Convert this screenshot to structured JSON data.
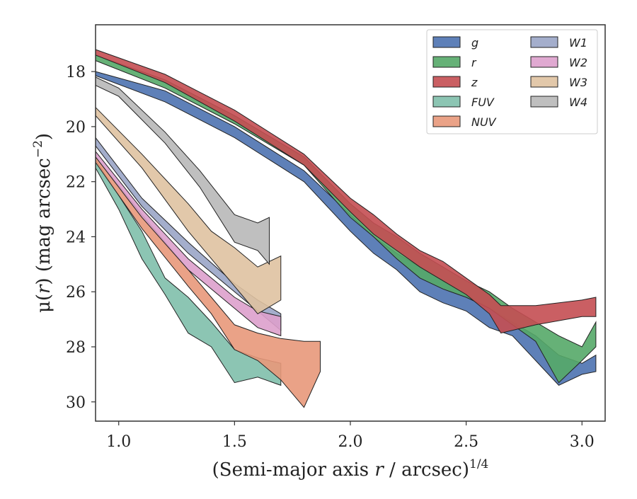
{
  "chart_data": {
    "type": "area",
    "xlabel_prefix": "(Semi-major axis ",
    "xlabel_var": "r",
    "xlabel_suffix": " / arcsec)",
    "xlabel_exp": "1/4",
    "ylabel_prefix": "μ(",
    "ylabel_var": "r",
    "ylabel_suffix": ") (mag arcsec",
    "ylabel_exp": "−2",
    "ylabel_close": ")",
    "xlim": [
      0.9,
      3.1
    ],
    "ylim": [
      30.7,
      16.3
    ],
    "y_inverted": true,
    "xticks": [
      1.0,
      1.5,
      2.0,
      2.5,
      3.0
    ],
    "xtick_labels": [
      "1.0",
      "1.5",
      "2.0",
      "2.5",
      "3.0"
    ],
    "yticks": [
      18,
      20,
      22,
      24,
      26,
      28,
      30
    ],
    "ytick_labels": [
      "18",
      "20",
      "22",
      "24",
      "26",
      "28",
      "30"
    ],
    "grid": false,
    "legend_position": "top-right",
    "legend_columns": 2,
    "series": [
      {
        "name": "g",
        "color": "#4c72b0",
        "x": [
          0.9,
          1.2,
          1.5,
          1.8,
          2.0,
          2.1,
          2.2,
          2.3,
          2.4,
          2.5,
          2.6,
          2.7,
          2.8,
          2.9,
          3.0,
          3.06
        ],
        "lower": [
          18.0,
          18.7,
          20.0,
          21.6,
          23.2,
          24.0,
          24.6,
          25.1,
          25.6,
          26.1,
          26.6,
          27.1,
          27.6,
          28.3,
          28.6,
          28.3
        ],
        "upper": [
          18.15,
          19.1,
          20.4,
          22.0,
          23.8,
          24.6,
          25.2,
          26.0,
          26.4,
          26.7,
          27.3,
          27.6,
          28.5,
          29.4,
          29.0,
          28.9
        ]
      },
      {
        "name": "r",
        "color": "#55a868",
        "x": [
          0.9,
          1.2,
          1.5,
          1.8,
          2.0,
          2.1,
          2.2,
          2.3,
          2.4,
          2.5,
          2.6,
          2.7,
          2.8,
          2.9,
          3.0,
          3.06
        ],
        "lower": [
          17.4,
          18.3,
          19.6,
          21.1,
          22.8,
          23.5,
          24.0,
          24.6,
          25.1,
          25.6,
          26.0,
          26.6,
          27.1,
          27.6,
          28.0,
          27.1
        ],
        "upper": [
          17.6,
          18.6,
          19.9,
          21.4,
          23.3,
          24.0,
          24.8,
          25.5,
          25.9,
          26.2,
          26.6,
          27.2,
          27.8,
          29.3,
          28.5,
          28.0
        ]
      },
      {
        "name": "z",
        "color": "#c44e52",
        "x": [
          0.9,
          1.2,
          1.5,
          1.8,
          2.0,
          2.1,
          2.2,
          2.3,
          2.4,
          2.5,
          2.6,
          2.65,
          2.8,
          3.0,
          3.06
        ],
        "lower": [
          17.2,
          18.1,
          19.4,
          21.0,
          22.6,
          23.2,
          23.9,
          24.5,
          24.9,
          25.5,
          26.1,
          26.5,
          26.5,
          26.3,
          26.2
        ],
        "upper": [
          17.4,
          18.4,
          19.8,
          21.4,
          23.1,
          23.9,
          24.5,
          25.1,
          25.6,
          26.1,
          26.8,
          27.5,
          27.2,
          26.9,
          26.9
        ]
      },
      {
        "name": "FUV",
        "color": "#7fbfab",
        "x": [
          0.9,
          1.0,
          1.1,
          1.2,
          1.3,
          1.4,
          1.5,
          1.6,
          1.7
        ],
        "lower": [
          21.2,
          22.5,
          23.8,
          25.5,
          26.2,
          27.1,
          28.1,
          28.4,
          28.6
        ],
        "upper": [
          21.5,
          23.0,
          24.8,
          26.1,
          27.5,
          28.0,
          29.3,
          29.1,
          29.4
        ]
      },
      {
        "name": "NUV",
        "color": "#e8987a",
        "x": [
          0.9,
          1.1,
          1.3,
          1.4,
          1.5,
          1.6,
          1.7,
          1.8,
          1.87
        ],
        "lower": [
          21.1,
          23.2,
          25.2,
          26.2,
          27.2,
          27.5,
          27.7,
          27.8,
          27.8
        ],
        "upper": [
          21.3,
          23.7,
          25.8,
          26.8,
          28.1,
          28.5,
          29.2,
          30.2,
          28.9
        ]
      },
      {
        "name": "W1",
        "color": "#9aa5c7",
        "x": [
          0.9,
          1.1,
          1.3,
          1.5,
          1.6,
          1.7
        ],
        "lower": [
          20.4,
          22.6,
          24.2,
          25.7,
          26.3,
          26.8
        ],
        "upper": [
          20.7,
          22.9,
          24.6,
          26.0,
          26.7,
          27.4
        ]
      },
      {
        "name": "W2",
        "color": "#dda0cc",
        "x": [
          0.9,
          1.1,
          1.3,
          1.5,
          1.6,
          1.7
        ],
        "lower": [
          20.9,
          23.0,
          24.8,
          26.2,
          26.7,
          26.9
        ],
        "upper": [
          21.1,
          23.3,
          25.2,
          26.6,
          27.3,
          27.6
        ]
      },
      {
        "name": "W3",
        "color": "#dfc2a1",
        "x": [
          0.9,
          1.1,
          1.3,
          1.4,
          1.5,
          1.6,
          1.7
        ],
        "lower": [
          19.3,
          21.0,
          22.8,
          23.8,
          24.4,
          25.1,
          24.7
        ],
        "upper": [
          19.6,
          21.5,
          23.8,
          24.8,
          25.8,
          26.8,
          26.3
        ]
      },
      {
        "name": "W4",
        "color": "#b8b8b8",
        "x": [
          0.9,
          1.0,
          1.2,
          1.35,
          1.5,
          1.6,
          1.65
        ],
        "lower": [
          18.2,
          18.6,
          20.2,
          21.6,
          23.2,
          23.5,
          23.3
        ],
        "upper": [
          18.5,
          18.9,
          20.6,
          22.2,
          24.2,
          24.5,
          25.0
        ]
      }
    ]
  }
}
